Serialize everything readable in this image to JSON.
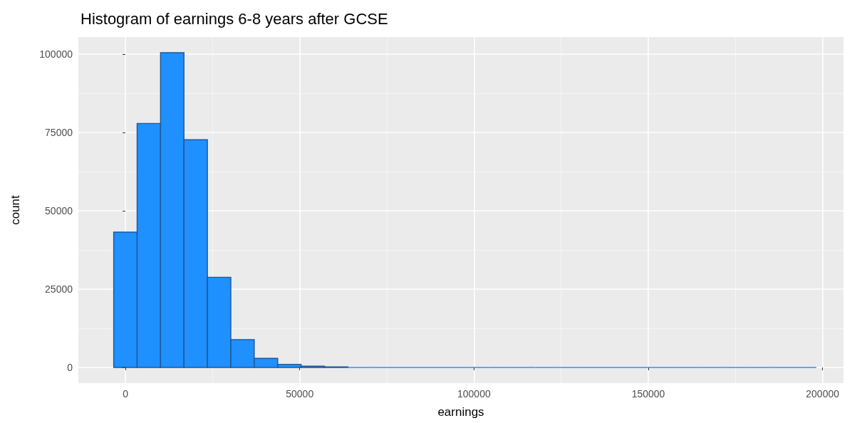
{
  "chart_data": {
    "type": "histogram",
    "title": "Histogram of earnings 6-8 years after GCSE",
    "xlabel": "earnings",
    "ylabel": "count",
    "bins": [
      -3360,
      3360,
      10080,
      16800,
      23520,
      30240,
      36960,
      43680,
      50400,
      57120,
      63840,
      70560,
      77280,
      84000,
      90720,
      97440,
      104160,
      110880,
      117600,
      124320,
      131040,
      137760,
      144480,
      151200,
      157920,
      164640,
      171360,
      178080,
      184800,
      191520,
      198240
    ],
    "values": [
      43200,
      77900,
      100500,
      72700,
      28800,
      8900,
      2900,
      1000,
      400,
      200,
      0,
      0,
      0,
      0,
      0,
      0,
      0,
      0,
      0,
      0,
      0,
      0,
      0,
      0,
      0,
      0,
      0,
      0,
      0,
      0
    ],
    "color": "#1e90ff",
    "xlim": [
      -13500,
      206000
    ],
    "xticks": [
      0,
      50000,
      100000,
      150000,
      200000
    ],
    "ylim": [
      -5000,
      105500
    ],
    "yticks": [
      0,
      25000,
      50000,
      75000,
      100000
    ],
    "grid": true
  }
}
